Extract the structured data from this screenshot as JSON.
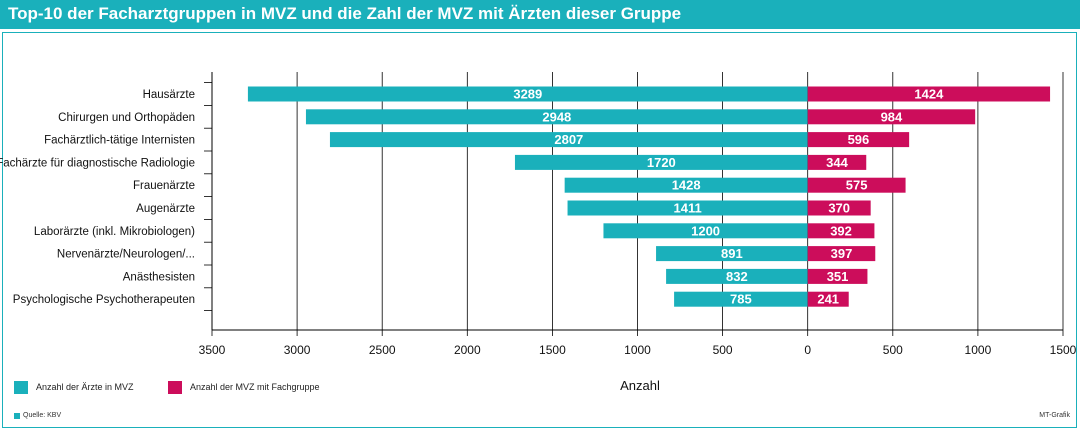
{
  "title": "Top-10 der Facharztgruppen in MVZ und die Zahl der MVZ mit Ärzten dieser Gruppe",
  "colors": {
    "accent": "#1ab0bb",
    "series_left": "#1ab0bb",
    "series_right": "#cc0d5b"
  },
  "chart_data": {
    "type": "bar",
    "orientation": "horizontal-diverging",
    "categories": [
      "Hausärzte",
      "Chirurgen und Orthopäden",
      "Fachärztlich-tätige Internisten",
      "Fachärzte für diagnostische Radiologie",
      "Frauenärzte",
      "Augenärzte",
      "Laborärzte (inkl. Mikrobiologen)",
      "Nervenärzte/Neurologen/...",
      "Anästhesisten",
      "Psychologische Psychotherapeuten"
    ],
    "series": [
      {
        "name": "Anzahl der Ärzte in MVZ",
        "side": "left",
        "values": [
          3289,
          2948,
          2807,
          1720,
          1428,
          1411,
          1200,
          891,
          832,
          785
        ]
      },
      {
        "name": "Anzahl der MVZ mit Fachgruppe",
        "side": "right",
        "values": [
          1424,
          984,
          596,
          344,
          575,
          370,
          392,
          397,
          351,
          241
        ]
      }
    ],
    "xlabel": "Anzahl",
    "xlim": [
      -3500,
      1500
    ],
    "xticks": [
      -3500,
      -3000,
      -2500,
      -2000,
      -1500,
      -1000,
      -500,
      0,
      500,
      1000,
      1500
    ],
    "xtick_labels": [
      "3500",
      "3000",
      "2500",
      "2000",
      "1500",
      "1000",
      "500",
      "0",
      "500",
      "1000",
      "1500"
    ],
    "grid": true,
    "legend_position": "bottom-left"
  },
  "footer": {
    "source": "Quelle: KBV",
    "credit": "MT-Grafik"
  }
}
